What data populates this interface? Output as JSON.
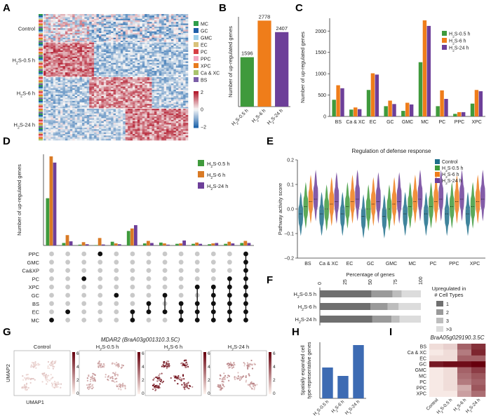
{
  "panels": {
    "A": {
      "letter": "A",
      "row_groups": [
        "Control",
        "H2S-0.5 h",
        "H2S-6 h",
        "H2S-24 h"
      ],
      "column_legend": [
        "MC",
        "GC",
        "GMC",
        "EC",
        "PC",
        "PPC",
        "XPC",
        "Ca & XC",
        "BS"
      ],
      "column_legend_colors": [
        "#2e9e4a",
        "#1f5fa8",
        "#9fd1ea",
        "#d9c27a",
        "#d64045",
        "#f4a7c0",
        "#e77b1e",
        "#a9c46c",
        "#7b5ea7"
      ],
      "colorbar_ticks": [
        "2",
        "0",
        "-2"
      ]
    },
    "B": {
      "letter": "B",
      "chart_data": {
        "type": "bar",
        "categories": [
          "H2S-0.5 h",
          "H2S-6 h",
          "H2S-24 h"
        ],
        "values": [
          1596,
          2778,
          2407
        ],
        "value_labels": [
          "1596",
          "2778",
          "2407"
        ],
        "colors": [
          "#3f9a3c",
          "#ef7d1a",
          "#6d3f99"
        ],
        "ylabel": "Number of up-regulated genes",
        "ylim": [
          0,
          2900
        ]
      }
    },
    "C": {
      "letter": "C",
      "chart_data": {
        "type": "bar",
        "categories": [
          "BS",
          "Ca & XC",
          "EC",
          "GC",
          "GMC",
          "MC",
          "PC",
          "PPC",
          "XPC"
        ],
        "series": [
          {
            "name": "H2S-0.5 h",
            "color": "#3f9a3c",
            "values": [
              390,
              160,
              620,
              240,
              130,
              1270,
              240,
              60,
              300
            ]
          },
          {
            "name": "H2S-6 h",
            "color": "#ef7d1a",
            "values": [
              730,
              210,
              1010,
              370,
              320,
              2250,
              610,
              100,
              620
            ]
          },
          {
            "name": "H2S-24 h",
            "color": "#6d3f99",
            "values": [
              660,
              170,
              980,
              290,
              280,
              2120,
              410,
              100,
              590
            ]
          }
        ],
        "ylabel": "Number of up-regulated genes",
        "yticks": [
          "0",
          "500",
          "1000",
          "1500",
          "2000"
        ],
        "ylim": [
          0,
          2300
        ]
      }
    },
    "D": {
      "letter": "D",
      "chart_data": {
        "type": "bar",
        "ylabel": "Number of up-regulated genes",
        "series": [
          {
            "name": "H2S-0.5 h",
            "color": "#3f9a3c"
          },
          {
            "name": "H2S-6 h",
            "color": "#d97a25"
          },
          {
            "name": "H2S-24 h",
            "color": "#6d3f99"
          }
        ],
        "set_labels": [
          "PPC",
          "GMC",
          "Ca&XP",
          "PC",
          "XPC",
          "GC",
          "BS",
          "EC",
          "MC"
        ],
        "groups": [
          {
            "values": [
              570,
              1075,
              1000
            ],
            "members": [
              "MC"
            ]
          },
          {
            "values": [
              30,
              125,
              50
            ],
            "members": [
              "EC"
            ]
          },
          {
            "values": [
              10,
              40,
              15
            ],
            "members": [
              "PC"
            ]
          },
          {
            "values": [
              5,
              90,
              12
            ],
            "members": [
              "PPC"
            ]
          },
          {
            "values": [
              45,
              25,
              15
            ],
            "members": [
              "GC"
            ]
          },
          {
            "values": [
              175,
              205,
              245
            ],
            "members": [
              "MC",
              "EC"
            ]
          },
          {
            "values": [
              25,
              55,
              30
            ],
            "members": [
              "BS",
              "EC"
            ]
          },
          {
            "values": [
              35,
              25,
              10
            ],
            "members": [
              "GC",
              "EC"
            ]
          },
          {
            "values": [
              20,
              25,
              60
            ],
            "members": [
              "BS",
              "EC",
              "MC"
            ]
          },
          {
            "values": [
              20,
              35,
              20
            ],
            "members": [
              "XPC",
              "BS",
              "EC",
              "MC"
            ]
          },
          {
            "values": [
              15,
              25,
              30
            ],
            "members": [
              "XPC",
              "BS",
              "EC",
              "MC",
              "GC"
            ]
          },
          {
            "values": [
              20,
              45,
              25
            ],
            "members": [
              "PC",
              "XPC",
              "GC",
              "BS",
              "EC",
              "MC"
            ]
          },
          {
            "values": [
              30,
              55,
              30
            ],
            "members": [
              "PPC",
              "GMC",
              "Ca&XP",
              "PC",
              "XPC",
              "GC",
              "BS",
              "EC",
              "MC"
            ]
          }
        ],
        "ylim": [
          0,
          1100
        ]
      }
    },
    "E": {
      "letter": "E",
      "chart_data": {
        "type": "violin",
        "title": "Regulation of defense response",
        "ylabel": "Pathway activity score",
        "categories": [
          "BS",
          "Ca & XC",
          "EC",
          "GC",
          "GMC",
          "MC",
          "PC",
          "PPC",
          "XPC"
        ],
        "series": [
          {
            "name": "Control",
            "color": "#1f6f8b",
            "medians": [
              -0.02,
              -0.02,
              -0.02,
              -0.03,
              -0.03,
              -0.02,
              -0.02,
              -0.02,
              -0.02
            ]
          },
          {
            "name": "H2S-0.5 h",
            "color": "#3f9a3c",
            "medians": [
              0.01,
              0.0,
              0.01,
              0.0,
              0.0,
              0.01,
              0.01,
              0.01,
              0.01
            ]
          },
          {
            "name": "H2S-6 h",
            "color": "#ef7d1a",
            "medians": [
              0.03,
              0.02,
              0.03,
              0.02,
              0.02,
              0.03,
              0.03,
              0.03,
              0.03
            ]
          },
          {
            "name": "H2S-24 h",
            "color": "#6d3f99",
            "medians": [
              0.04,
              0.03,
              0.04,
              0.03,
              0.03,
              0.04,
              0.04,
              0.04,
              0.04
            ]
          }
        ],
        "yticks": [
          "0.2",
          "0.1",
          "0.0",
          "-0.1",
          "-0.2"
        ],
        "ylim": [
          -0.2,
          0.2
        ]
      }
    },
    "F": {
      "letter": "F",
      "chart_data": {
        "type": "bar",
        "orientation": "horizontal-stacked",
        "xlabel": "Percentage of genes",
        "xticks": [
          "0",
          "25",
          "50",
          "75",
          "100"
        ],
        "categories": [
          "H2S-0.5 h",
          "H2S-6 h",
          "H2S-24 h"
        ],
        "stack_series": [
          {
            "name": "1",
            "color": "#6f6f6f",
            "values": [
              51,
              50,
              52
            ]
          },
          {
            "name": "2",
            "color": "#9a9a9a",
            "values": [
              21,
              17,
              19
            ]
          },
          {
            "name": "3",
            "color": "#bdbdbd",
            "values": [
              9,
              11,
              8
            ]
          },
          {
            "name": ">3",
            "color": "#dcdcdc",
            "values": [
              19,
              22,
              21
            ]
          }
        ],
        "legend_title": "Upregulated in # Cell Types"
      }
    },
    "G": {
      "letter": "G",
      "title": "MDAR2 (BraA03g001310.3.5C)",
      "panels": [
        "Control",
        "H2S-0.5 h",
        "H2S-6 h",
        "H2S-24 h"
      ],
      "xlabel": "UMAP1",
      "ylabel": "UMAP2",
      "colorbar_ticks": [
        "6",
        "4",
        "2",
        "0"
      ]
    },
    "H": {
      "letter": "H",
      "chart_data": {
        "type": "bar",
        "categories": [
          "H2S-0.5 h",
          "H2S-6 h",
          "H2S-24 h"
        ],
        "values": [
          44,
          32,
          76
        ],
        "color": "#3d6bb3",
        "ylabel": "Spatially expanded cell type-representative genes",
        "ylim": [
          0,
          80
        ]
      }
    },
    "I": {
      "letter": "I",
      "title": "BraA05g029190.3.5C",
      "chart_data": {
        "type": "heatmap",
        "rows": [
          "BS",
          "Ca & XC",
          "EC",
          "GC",
          "GMC",
          "MC",
          "PC",
          "PPC",
          "XPC"
        ],
        "columns": [
          "Control",
          "H2S-0.5 h",
          "H2S-6 h",
          "H2S-24 h"
        ],
        "values": [
          [
            0.1,
            0.15,
            0.6,
            0.8
          ],
          [
            0.05,
            0.1,
            0.5,
            0.85
          ],
          [
            0.1,
            0.1,
            0.6,
            0.6
          ],
          [
            0.9,
            0.95,
            0.95,
            1.0
          ],
          [
            0.05,
            0.1,
            0.6,
            0.75
          ],
          [
            0.05,
            0.1,
            0.55,
            0.65
          ],
          [
            0.05,
            0.1,
            0.5,
            0.6
          ],
          [
            0.05,
            0.1,
            0.3,
            0.65
          ],
          [
            0.05,
            0.05,
            0.35,
            0.55
          ]
        ]
      }
    }
  }
}
